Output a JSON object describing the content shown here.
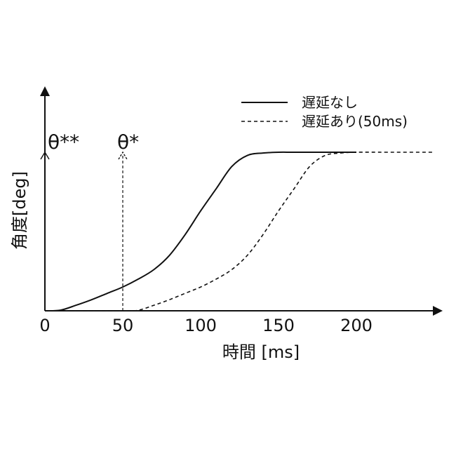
{
  "chart_data": {
    "type": "line",
    "xlabel": "時間 [ms]",
    "ylabel": "角度[deg]",
    "x_ticks": [
      "0",
      "50",
      "100",
      "150",
      "200"
    ],
    "xlim": [
      0,
      250
    ],
    "ylim": [
      0,
      1
    ],
    "y_ticks": [],
    "grid": false,
    "legend_position": "top-right",
    "series": [
      {
        "name": "遅延なし",
        "style": "solid",
        "x": [
          0,
          10,
          20,
          30,
          40,
          50,
          60,
          70,
          80,
          90,
          100,
          110,
          120,
          130,
          140,
          150,
          160,
          180,
          200
        ],
        "y": [
          0,
          0.004,
          0.035,
          0.07,
          0.11,
          0.15,
          0.2,
          0.26,
          0.35,
          0.48,
          0.63,
          0.77,
          0.91,
          0.98,
          0.995,
          1,
          1,
          1,
          1
        ]
      },
      {
        "name": "遅延あり(50ms)",
        "style": "dashed",
        "x": [
          0,
          50,
          60,
          70,
          80,
          90,
          100,
          110,
          120,
          130,
          140,
          150,
          160,
          170,
          180,
          190,
          200,
          220,
          250
        ],
        "y": [
          0,
          0,
          0.004,
          0.035,
          0.07,
          0.11,
          0.15,
          0.2,
          0.26,
          0.35,
          0.48,
          0.63,
          0.77,
          0.91,
          0.98,
          0.995,
          1,
          1,
          1
        ]
      }
    ],
    "markers": [
      {
        "label": "θ**",
        "x": 0,
        "y": 1,
        "style": "solid"
      },
      {
        "label": "θ*",
        "x": 50,
        "y": 1,
        "style": "dashed"
      }
    ]
  }
}
